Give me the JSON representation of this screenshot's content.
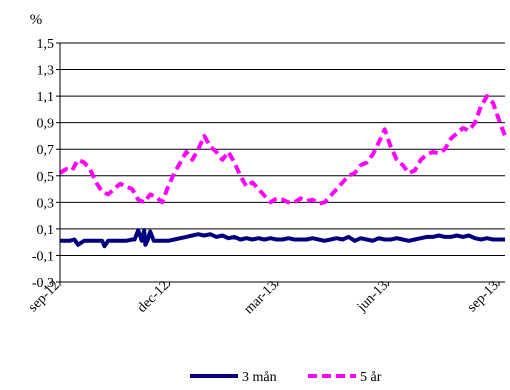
{
  "chart_data": {
    "type": "line",
    "ylabel": "%",
    "ylim": [
      -0.3,
      1.5
    ],
    "y_ticks": [
      "1,5",
      "1,3",
      "1,1",
      "0,9",
      "0,7",
      "0,5",
      "0,3",
      "0,1",
      "-0,1",
      "-0,3"
    ],
    "y_tick_values": [
      1.5,
      1.3,
      1.1,
      0.9,
      0.7,
      0.5,
      0.3,
      0.1,
      -0.1,
      -0.3
    ],
    "x_ticks": [
      "sep-12",
      "dec-12",
      "mar-13",
      "jun-13",
      "sep-13"
    ],
    "x_tick_positions": [
      0,
      91,
      181,
      273,
      365
    ],
    "x_range": [
      0,
      370
    ],
    "grid": "horizontal",
    "legend": "bottom",
    "series": [
      {
        "name": "3 mån",
        "color": "#000080",
        "style": "solid",
        "x": [
          0,
          8,
          12,
          15,
          20,
          30,
          35,
          37,
          40,
          45,
          50,
          55,
          60,
          62,
          65,
          68,
          70,
          71,
          73,
          75,
          78,
          80,
          85,
          90,
          95,
          100,
          105,
          110,
          115,
          120,
          125,
          130,
          135,
          140,
          145,
          150,
          155,
          160,
          165,
          170,
          175,
          180,
          185,
          190,
          195,
          200,
          205,
          210,
          215,
          220,
          225,
          230,
          235,
          240,
          245,
          250,
          255,
          260,
          265,
          270,
          275,
          280,
          285,
          290,
          295,
          300,
          305,
          310,
          315,
          320,
          325,
          330,
          335,
          340,
          345,
          350,
          355,
          360,
          365,
          370
        ],
        "values": [
          0.01,
          0.01,
          0.02,
          -0.02,
          0.01,
          0.01,
          0.01,
          -0.03,
          0.01,
          0.01,
          0.01,
          0.01,
          0.02,
          0.02,
          0.09,
          0.01,
          0.09,
          -0.02,
          0.02,
          0.08,
          0.01,
          0.01,
          0.01,
          0.01,
          0.02,
          0.03,
          0.04,
          0.05,
          0.06,
          0.05,
          0.06,
          0.04,
          0.05,
          0.03,
          0.04,
          0.02,
          0.03,
          0.02,
          0.03,
          0.02,
          0.03,
          0.02,
          0.02,
          0.03,
          0.02,
          0.02,
          0.02,
          0.03,
          0.02,
          0.01,
          0.02,
          0.03,
          0.02,
          0.04,
          0.01,
          0.03,
          0.02,
          0.01,
          0.03,
          0.02,
          0.02,
          0.03,
          0.02,
          0.01,
          0.02,
          0.03,
          0.04,
          0.04,
          0.05,
          0.04,
          0.04,
          0.05,
          0.04,
          0.05,
          0.03,
          0.02,
          0.03,
          0.02,
          0.02,
          0.02
        ]
      },
      {
        "name": "5 år",
        "color": "#ff00ff",
        "style": "dashed",
        "x": [
          0,
          5,
          10,
          15,
          20,
          25,
          30,
          35,
          40,
          45,
          50,
          55,
          60,
          65,
          70,
          75,
          80,
          85,
          90,
          95,
          100,
          105,
          110,
          115,
          120,
          125,
          130,
          135,
          140,
          145,
          150,
          155,
          160,
          165,
          170,
          175,
          180,
          185,
          190,
          195,
          200,
          205,
          210,
          215,
          220,
          225,
          230,
          235,
          240,
          245,
          250,
          255,
          260,
          265,
          270,
          275,
          280,
          285,
          290,
          295,
          300,
          305,
          310,
          315,
          320,
          325,
          330,
          335,
          340,
          345,
          350,
          355,
          360,
          365,
          370
        ],
        "values": [
          0.52,
          0.55,
          0.54,
          0.62,
          0.6,
          0.55,
          0.45,
          0.38,
          0.36,
          0.4,
          0.44,
          0.42,
          0.4,
          0.32,
          0.3,
          0.36,
          0.34,
          0.3,
          0.42,
          0.52,
          0.6,
          0.68,
          0.62,
          0.7,
          0.8,
          0.72,
          0.68,
          0.62,
          0.68,
          0.6,
          0.5,
          0.42,
          0.45,
          0.4,
          0.35,
          0.3,
          0.33,
          0.32,
          0.3,
          0.3,
          0.33,
          0.31,
          0.32,
          0.29,
          0.3,
          0.35,
          0.4,
          0.45,
          0.5,
          0.52,
          0.58,
          0.6,
          0.66,
          0.75,
          0.85,
          0.72,
          0.62,
          0.58,
          0.52,
          0.54,
          0.62,
          0.66,
          0.68,
          0.67,
          0.7,
          0.78,
          0.82,
          0.86,
          0.84,
          0.9,
          1.02,
          1.1,
          1.05,
          0.92,
          0.8
        ]
      }
    ]
  }
}
